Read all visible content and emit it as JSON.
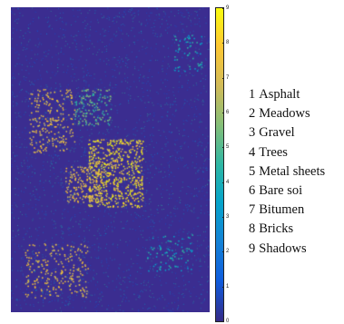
{
  "image": {
    "description_icon": "classification-map",
    "background_class_color": "#3b2d90"
  },
  "colorbar": {
    "ticks": [
      "0",
      "1",
      "2",
      "3",
      "4",
      "5",
      "6",
      "7",
      "8",
      "9"
    ],
    "colors": [
      "#352a87",
      "#0f5cdd",
      "#1481d6",
      "#06a4ca",
      "#2eb7a4",
      "#87bf77",
      "#d1bb59",
      "#fec832",
      "#f9fb0e"
    ]
  },
  "legend": [
    {
      "num": "1",
      "label": "Asphalt"
    },
    {
      "num": "2",
      "label": "Meadows"
    },
    {
      "num": "3",
      "label": "Gravel"
    },
    {
      "num": "4",
      "label": "Trees"
    },
    {
      "num": "5",
      "label": "Metal sheets"
    },
    {
      "num": "6",
      "label": "Bare soi"
    },
    {
      "num": "7",
      "label": "Bitumen"
    },
    {
      "num": "8",
      "label": "Bricks"
    },
    {
      "num": "9",
      "label": "Shadows"
    }
  ]
}
